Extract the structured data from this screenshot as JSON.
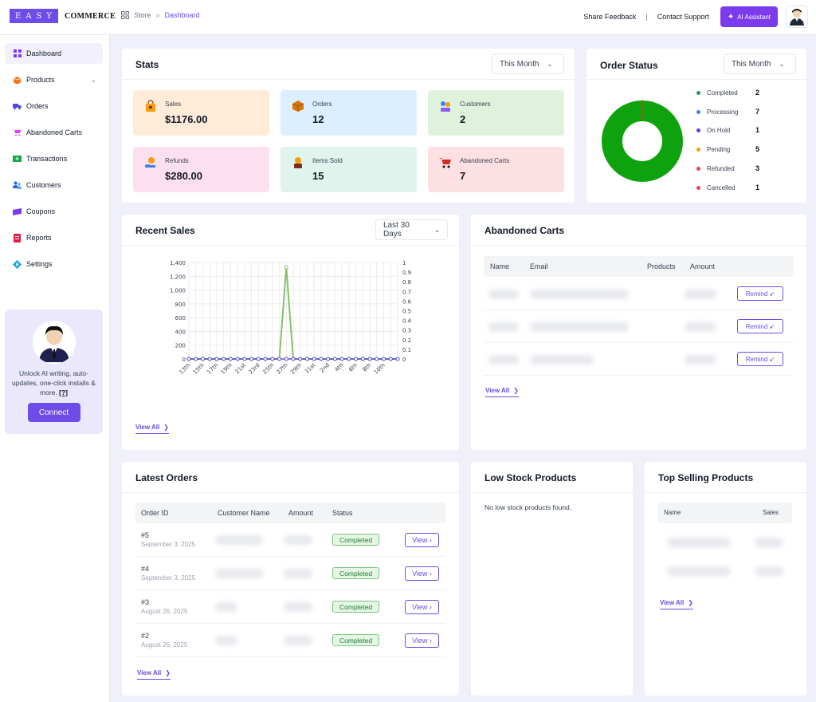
{
  "brand": {
    "logo_box": "EASY",
    "logo_text": "COMMERCE"
  },
  "breadcrumb": {
    "root": "Store",
    "separator": "»",
    "current": "Dashboard"
  },
  "topnav": {
    "feedback": "Share Feedback",
    "divider": "|",
    "support": "Contact Support",
    "ai": "AI Assistant"
  },
  "sidebar": {
    "items": [
      {
        "label": "Dashboard",
        "icon": "grid-icon",
        "color": "#7c3aed"
      },
      {
        "label": "Products",
        "icon": "box-icon",
        "color": "#f97316"
      },
      {
        "label": "Orders",
        "icon": "truck-icon",
        "color": "#4f46e5"
      },
      {
        "label": "Abandoned Carts",
        "icon": "cart-icon",
        "color": "#d946ef"
      },
      {
        "label": "Transactions",
        "icon": "money-icon",
        "color": "#16a34a"
      },
      {
        "label": "Customers",
        "icon": "users-icon",
        "color": "#2563eb"
      },
      {
        "label": "Coupons",
        "icon": "ticket-icon",
        "color": "#7c3aed"
      },
      {
        "label": "Reports",
        "icon": "report-icon",
        "color": "#e11d48"
      },
      {
        "label": "Settings",
        "icon": "gear-icon",
        "color": "#0ea5e9"
      }
    ],
    "promo": {
      "text": "Unlock AI writing, auto-updates, one-click installs & more.",
      "help": "[?]",
      "button": "Connect"
    }
  },
  "stats": {
    "title": "Stats",
    "range": "This Month",
    "tiles": [
      {
        "label": "Sales",
        "value": "$1176.00",
        "bg": "#feecd9"
      },
      {
        "label": "Orders",
        "value": "12",
        "bg": "#dcefff"
      },
      {
        "label": "Customers",
        "value": "2",
        "bg": "#dff3dc"
      },
      {
        "label": "Refunds",
        "value": "$280.00",
        "bg": "#fde0ef"
      },
      {
        "label": "Items Sold",
        "value": "15",
        "bg": "#dff4ec"
      },
      {
        "label": "Abandoned Carts",
        "value": "7",
        "bg": "#fde0e2"
      }
    ]
  },
  "order_status": {
    "title": "Order Status",
    "range": "This Month",
    "items": [
      {
        "label": "Completed",
        "value": "2",
        "color": "#16a34a"
      },
      {
        "label": "Processing",
        "value": "7",
        "color": "#3b82f6"
      },
      {
        "label": "On Hold",
        "value": "1",
        "color": "#4f46e5"
      },
      {
        "label": "Pending",
        "value": "5",
        "color": "#f59e0b"
      },
      {
        "label": "Refunded",
        "value": "3",
        "color": "#ef4444"
      },
      {
        "label": "Cancelled",
        "value": "1",
        "color": "#f43f5e"
      }
    ]
  },
  "recent_sales": {
    "title": "Recent Sales",
    "range": "Last 30 Days",
    "view_all": "View All"
  },
  "chart_data": {
    "type": "line",
    "title": "",
    "x": [
      "13th",
      "14th",
      "15th",
      "16th",
      "17th",
      "18th",
      "19th",
      "20th",
      "21st",
      "22nd",
      "23rd",
      "24th",
      "25th",
      "26th",
      "27th",
      "28th",
      "29th",
      "30th",
      "31st",
      "1st",
      "2nd",
      "3rd",
      "4th",
      "5th",
      "6th",
      "7th",
      "8th",
      "9th",
      "10th",
      "11th",
      "12th"
    ],
    "x_tick_labels": [
      "13th",
      "15th",
      "17th",
      "19th",
      "21st",
      "23rd",
      "25th",
      "27th",
      "29th",
      "31st",
      "2nd",
      "4th",
      "6th",
      "8th",
      "10th"
    ],
    "series": [
      {
        "values": [
          0,
          0,
          0,
          0,
          0,
          0,
          0,
          0,
          0,
          0,
          0,
          0,
          0,
          0,
          1330,
          0,
          0,
          0,
          0,
          0,
          0,
          0,
          0,
          0,
          0,
          0,
          0,
          0,
          0,
          0,
          0
        ],
        "color": "#86c06a"
      },
      {
        "values": [
          0,
          0,
          0,
          0,
          0,
          0,
          0,
          0,
          0,
          0,
          0,
          0,
          0,
          0,
          0,
          0,
          0,
          0,
          0,
          0,
          0,
          0,
          0,
          0,
          0,
          0,
          0,
          0,
          0,
          0,
          0
        ],
        "color": "#5b4fcf"
      }
    ],
    "ylim": [
      0,
      1400
    ],
    "yticks": [
      "0",
      "200",
      "400",
      "600",
      "800",
      "1,000",
      "1,200",
      "1,400"
    ],
    "y2lim": [
      0,
      1
    ],
    "y2ticks": [
      "0",
      "0.1",
      "0.2",
      "0.3",
      "0.4",
      "0.5",
      "0.6",
      "0.7",
      "0.8",
      "0.9",
      "1"
    ],
    "grid": true
  },
  "abandoned_carts": {
    "title": "Abandoned Carts",
    "columns": [
      "Name",
      "Email",
      "Products",
      "Amount"
    ],
    "remind": "Remind",
    "view_all": "View All"
  },
  "latest_orders": {
    "title": "Latest Orders",
    "columns": [
      "Order ID",
      "Customer Name",
      "Amount",
      "Status"
    ],
    "rows": [
      {
        "id": "#5",
        "date": "September 3, 2025",
        "status": "Completed",
        "action": "View"
      },
      {
        "id": "#4",
        "date": "September 3, 2025",
        "status": "Completed",
        "action": "View"
      },
      {
        "id": "#3",
        "date": "August 26, 2025",
        "status": "Completed",
        "action": "View"
      },
      {
        "id": "#2",
        "date": "August 26, 2025",
        "status": "Completed",
        "action": "View"
      }
    ],
    "view_all": "View All"
  },
  "low_stock": {
    "title": "Low Stock Products",
    "empty": "No low stock products found."
  },
  "top_selling": {
    "title": "Top Selling Products",
    "columns": [
      "Name",
      "Sales"
    ],
    "view_all": "View All"
  }
}
